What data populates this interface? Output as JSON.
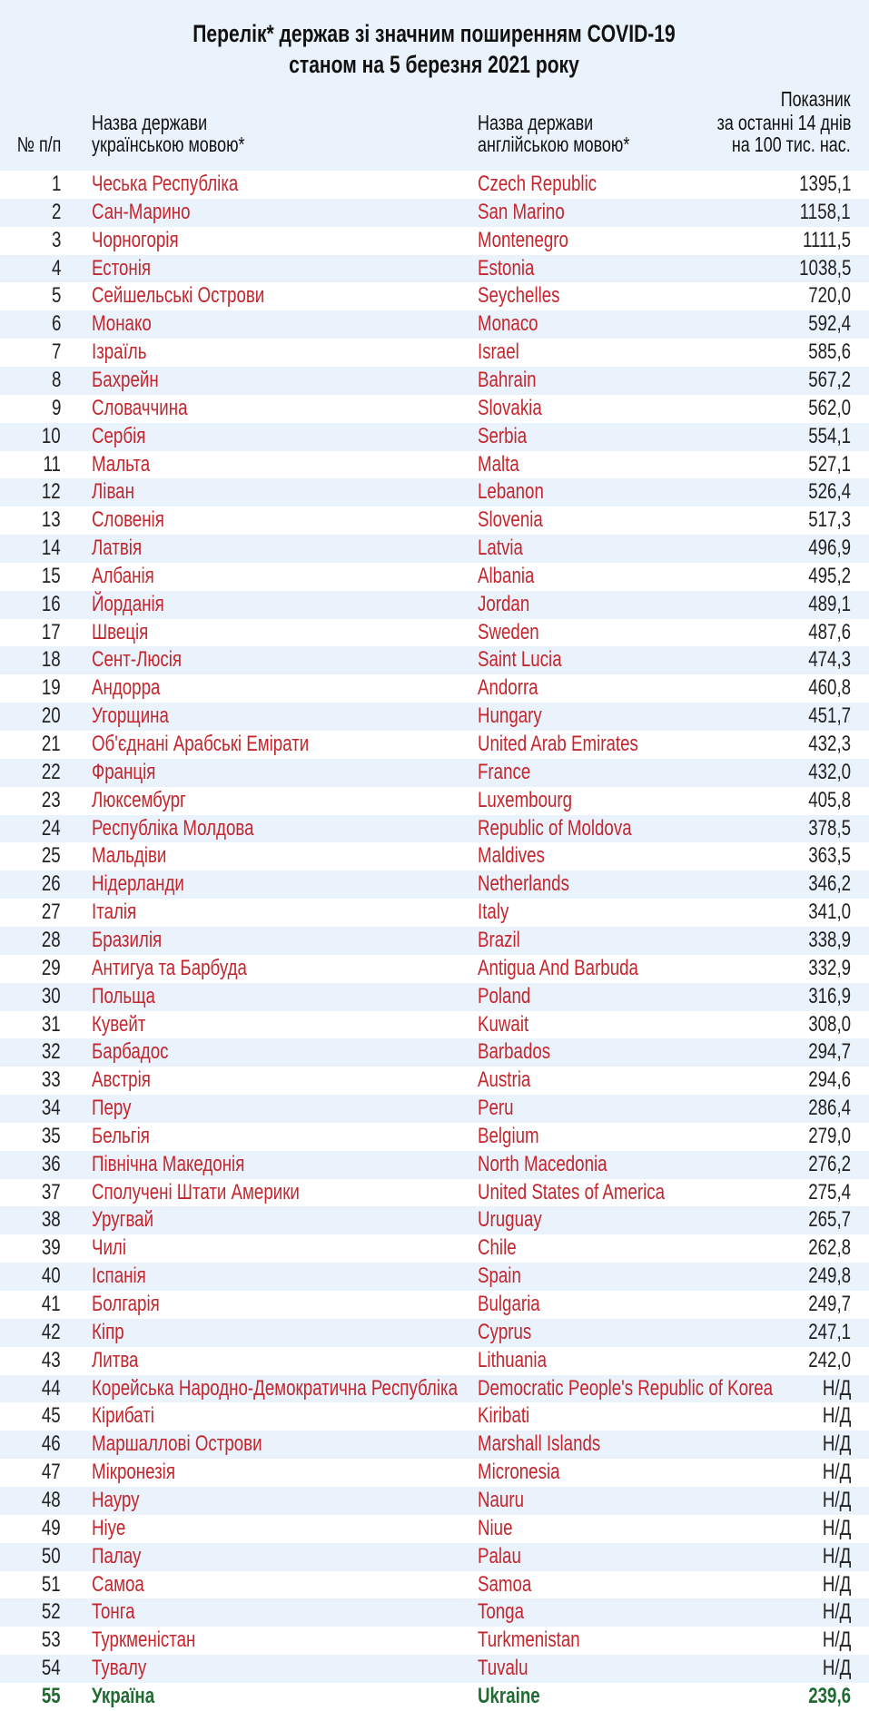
{
  "title": [
    "Перелік* держав зі значним поширенням COVID-19",
    "станом на 5 березня 2021 року"
  ],
  "header": {
    "number": "№ п/п",
    "ukrainian": [
      "Назва держави",
      "українською мовою*"
    ],
    "english": [
      "Назва держави",
      "англійською мовою*"
    ],
    "indicator": [
      "Показник",
      "за останні 14 днів",
      "на 100 тис. нас."
    ]
  },
  "rows": [
    [
      1,
      "Чеська Республіка",
      "Czech Republic",
      "1395,1"
    ],
    [
      2,
      "Сан-Марино",
      "San Marino",
      "1158,1"
    ],
    [
      3,
      "Чорногорія",
      "Montenegro",
      "1111,5"
    ],
    [
      4,
      "Естонія",
      "Estonia",
      "1038,5"
    ],
    [
      5,
      "Сейшельські Острови",
      "Seychelles",
      "720,0"
    ],
    [
      6,
      "Монако",
      "Monaco",
      "592,4"
    ],
    [
      7,
      "Ізраїль",
      "Israel",
      "585,6"
    ],
    [
      8,
      "Бахрейн",
      "Bahrain",
      "567,2"
    ],
    [
      9,
      "Словаччина",
      "Slovakia",
      "562,0"
    ],
    [
      10,
      "Сербія",
      "Serbia",
      "554,1"
    ],
    [
      11,
      "Мальта",
      "Malta",
      "527,1"
    ],
    [
      12,
      "Ліван",
      "Lebanon",
      "526,4"
    ],
    [
      13,
      "Словенія",
      "Slovenia",
      "517,3"
    ],
    [
      14,
      "Латвія",
      "Latvia",
      "496,9"
    ],
    [
      15,
      "Албанія",
      "Albania",
      "495,2"
    ],
    [
      16,
      "Йорданія",
      "Jordan",
      "489,1"
    ],
    [
      17,
      "Швеція",
      "Sweden",
      "487,6"
    ],
    [
      18,
      "Сент-Люсія",
      "Saint Lucia",
      "474,3"
    ],
    [
      19,
      "Андорра",
      "Andorra",
      "460,8"
    ],
    [
      20,
      "Угорщина",
      "Hungary",
      "451,7"
    ],
    [
      21,
      "Об'єднані Арабські Емірати",
      "United Arab Emirates",
      "432,3"
    ],
    [
      22,
      "Франція",
      "France",
      "432,0"
    ],
    [
      23,
      "Люксембург",
      "Luxembourg",
      "405,8"
    ],
    [
      24,
      "Республіка Молдова",
      "Republic of Moldova",
      "378,5"
    ],
    [
      25,
      "Мальдіви",
      "Maldives",
      "363,5"
    ],
    [
      26,
      "Нідерланди",
      "Netherlands",
      "346,2"
    ],
    [
      27,
      "Італія",
      "Italy",
      "341,0"
    ],
    [
      28,
      "Бразилія",
      "Brazil",
      "338,9"
    ],
    [
      29,
      "Антигуа та Барбуда",
      "Antigua And Barbuda",
      "332,9"
    ],
    [
      30,
      "Польща",
      "Poland",
      "316,9"
    ],
    [
      31,
      "Кувейт",
      "Kuwait",
      "308,0"
    ],
    [
      32,
      "Барбадос",
      "Barbados",
      "294,7"
    ],
    [
      33,
      "Австрія",
      "Austria",
      "294,6"
    ],
    [
      34,
      "Перу",
      "Peru",
      "286,4"
    ],
    [
      35,
      "Бельгія",
      "Belgium",
      "279,0"
    ],
    [
      36,
      "Північна Македонія",
      "North Macedonia",
      "276,2"
    ],
    [
      37,
      "Сполучені Штати Америки",
      "United States of America",
      "275,4"
    ],
    [
      38,
      "Уругвай",
      "Uruguay",
      "265,7"
    ],
    [
      39,
      "Чилі",
      "Chile",
      "262,8"
    ],
    [
      40,
      "Іспанія",
      "Spain",
      "249,8"
    ],
    [
      41,
      "Болгарія",
      "Bulgaria",
      "249,7"
    ],
    [
      42,
      "Кіпр",
      "Cyprus",
      "247,1"
    ],
    [
      43,
      "Литва",
      "Lithuania",
      "242,0"
    ],
    [
      44,
      "Корейська Народно-Демократична Республіка",
      "Democratic People's Republic of Korea",
      "Н/Д"
    ],
    [
      45,
      "Кірибаті",
      "Kiribati",
      "Н/Д"
    ],
    [
      46,
      "Маршаллові Острови",
      "Marshall Islands",
      "Н/Д"
    ],
    [
      47,
      "Мікронезія",
      "Micronesia",
      "Н/Д"
    ],
    [
      48,
      "Науру",
      "Nauru",
      "Н/Д"
    ],
    [
      49,
      "Ніуе",
      "Niue",
      "Н/Д"
    ],
    [
      50,
      "Палау",
      "Palau",
      "Н/Д"
    ],
    [
      51,
      "Самоа",
      "Samoa",
      "Н/Д"
    ],
    [
      52,
      "Тонга",
      "Tonga",
      "Н/Д"
    ],
    [
      53,
      "Туркменістан",
      "Turkmenistan",
      "Н/Д"
    ],
    [
      54,
      "Тувалу",
      "Tuvalu",
      "Н/Д"
    ],
    [
      55,
      "Україна",
      "Ukraine",
      "239,6"
    ]
  ]
}
